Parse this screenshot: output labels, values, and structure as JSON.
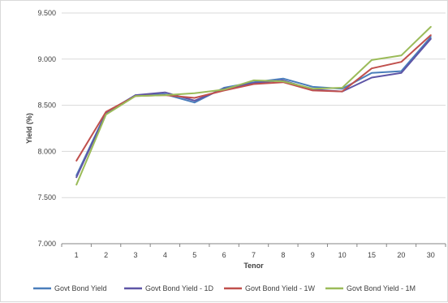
{
  "chart_data": {
    "type": "line",
    "title": "",
    "xlabel": "Tenor",
    "ylabel": "Yield (%)",
    "categories": [
      "1",
      "2",
      "3",
      "4",
      "5",
      "6",
      "7",
      "8",
      "9",
      "10",
      "15",
      "20",
      "30"
    ],
    "ylim": [
      7.0,
      9.5
    ],
    "yticks": [
      "7.000",
      "7.500",
      "8.000",
      "8.500",
      "9.000",
      "9.500"
    ],
    "grid": "horizontal",
    "legend": "bottom",
    "series": [
      {
        "name": "Govt Bond Yield",
        "color": "#4a7ebb",
        "values": [
          7.74,
          8.42,
          8.61,
          8.62,
          8.53,
          8.69,
          8.75,
          8.79,
          8.7,
          8.68,
          8.85,
          8.87,
          9.24
        ]
      },
      {
        "name": "Govt Bond Yield - 1D",
        "color": "#5e55a6",
        "values": [
          7.72,
          8.41,
          8.61,
          8.64,
          8.55,
          8.68,
          8.74,
          8.77,
          8.67,
          8.65,
          8.8,
          8.85,
          9.22
        ]
      },
      {
        "name": "Govt Bond Yield - 1W",
        "color": "#c0504d",
        "values": [
          7.9,
          8.43,
          8.6,
          8.61,
          8.58,
          8.66,
          8.73,
          8.75,
          8.66,
          8.65,
          8.9,
          8.97,
          9.26
        ]
      },
      {
        "name": "Govt Bond Yield - 1M",
        "color": "#9bbb59",
        "values": [
          7.64,
          8.4,
          8.6,
          8.61,
          8.63,
          8.67,
          8.77,
          8.76,
          8.68,
          8.69,
          8.99,
          9.04,
          9.35
        ]
      }
    ]
  }
}
